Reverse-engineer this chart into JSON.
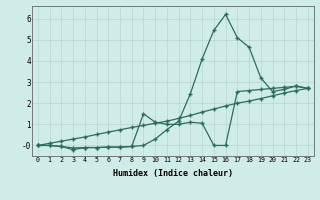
{
  "xlabel": "Humidex (Indice chaleur)",
  "x_values": [
    0,
    1,
    2,
    3,
    4,
    5,
    6,
    7,
    8,
    9,
    10,
    11,
    12,
    13,
    14,
    15,
    16,
    17,
    18,
    19,
    20,
    21,
    22,
    23
  ],
  "line1": [
    0.0,
    0.0,
    -0.05,
    -0.12,
    -0.1,
    -0.1,
    -0.08,
    -0.08,
    -0.05,
    0.0,
    0.3,
    0.75,
    1.15,
    2.45,
    4.1,
    5.45,
    6.2,
    5.1,
    4.65,
    3.2,
    2.55,
    2.65,
    2.82,
    2.7
  ],
  "line2": [
    0.0,
    0.0,
    -0.05,
    -0.2,
    -0.1,
    -0.1,
    -0.08,
    -0.08,
    -0.05,
    1.5,
    1.1,
    1.0,
    1.0,
    1.1,
    1.05,
    0.0,
    0.0,
    2.55,
    2.6,
    2.65,
    2.7,
    2.75,
    2.8,
    2.7
  ],
  "line3": [
    0.0,
    0.1,
    0.2,
    0.3,
    0.4,
    0.52,
    0.63,
    0.74,
    0.85,
    0.95,
    1.05,
    1.15,
    1.28,
    1.42,
    1.58,
    1.72,
    1.87,
    2.0,
    2.1,
    2.22,
    2.35,
    2.48,
    2.6,
    2.7
  ],
  "line_color": "#2e6b5e",
  "bg_color": "#d0ece8",
  "grid_color": "#b5d5d0",
  "ylim": [
    -0.5,
    6.6
  ],
  "xlim": [
    -0.5,
    23.5
  ],
  "yticks": [
    0,
    1,
    2,
    3,
    4,
    5,
    6
  ],
  "ytick_labels": [
    "-0",
    "1",
    "2",
    "3",
    "4",
    "5",
    "6"
  ]
}
